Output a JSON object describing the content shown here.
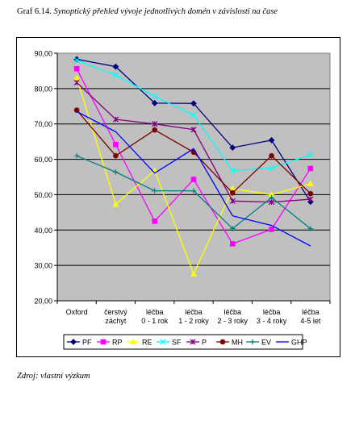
{
  "caption": {
    "figure_label": "Graf 6.14.",
    "title": "Synoptický přehled vývoje jednotlivých domén v závislosti na čase"
  },
  "source": "Zdroj: vlastní výzkum",
  "chart_data": {
    "type": "line",
    "title": "",
    "xlabel": "",
    "ylabel": "",
    "ylim": [
      20,
      90
    ],
    "ytick_step": 10,
    "ytick_labels": [
      "20,00",
      "30,00",
      "40,00",
      "50,00",
      "60,00",
      "70,00",
      "80,00",
      "90,00"
    ],
    "grid": true,
    "plot_background": "#c0c0c0",
    "legend_position": "bottom",
    "categories": [
      [
        "Oxford"
      ],
      [
        "čerstvý",
        "záchyt"
      ],
      [
        "léčba",
        "0 - 1 rok"
      ],
      [
        "léčba",
        "1 - 2 roky"
      ],
      [
        "léčba",
        "2 - 3 roky"
      ],
      [
        "léčba",
        "3 - 4 roky"
      ],
      [
        "léčba",
        "4-5 let"
      ]
    ],
    "series": [
      {
        "name": "PF",
        "color": "#000080",
        "marker": "diamond",
        "values": [
          88.3,
          86.2,
          75.9,
          75.8,
          63.3,
          65.4,
          48.0
        ]
      },
      {
        "name": "RP",
        "color": "#ff00ff",
        "marker": "square",
        "values": [
          85.6,
          64.2,
          42.5,
          54.3,
          36.1,
          40.2,
          57.4
        ]
      },
      {
        "name": "RE",
        "color": "#ffff00",
        "marker": "triangle",
        "values": [
          83.0,
          47.3,
          56.8,
          27.6,
          51.7,
          50.0,
          53.1
        ]
      },
      {
        "name": "SF",
        "color": "#00ffff",
        "marker": "x",
        "values": [
          88.0,
          83.8,
          77.8,
          72.5,
          56.8,
          57.5,
          61.3
        ]
      },
      {
        "name": "P",
        "color": "#800080",
        "marker": "star",
        "values": [
          81.7,
          71.3,
          70.0,
          68.4,
          48.2,
          47.9,
          48.7
        ]
      },
      {
        "name": "MH",
        "color": "#800000",
        "marker": "circle",
        "values": [
          73.9,
          61.0,
          68.3,
          62.0,
          50.5,
          61.0,
          50.3
        ]
      },
      {
        "name": "EV",
        "color": "#008080",
        "marker": "plus",
        "values": [
          61.0,
          56.4,
          51.1,
          51.1,
          40.4,
          49.2,
          40.4
        ]
      },
      {
        "name": "GHP",
        "color": "#0000ff",
        "marker": "none",
        "values": [
          73.5,
          67.8,
          56.1,
          63.0,
          44.0,
          41.3,
          35.5
        ]
      }
    ]
  }
}
